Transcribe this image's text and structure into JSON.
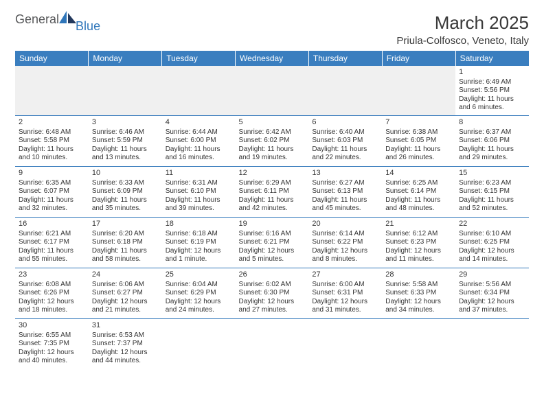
{
  "logo": {
    "general": "General",
    "blue": "Blue"
  },
  "header": {
    "month": "March 2025",
    "location": "Priula-Colfosco, Veneto, Italy"
  },
  "colors": {
    "header_bg": "#3a7ebf",
    "header_text": "#ffffff",
    "border": "#2f76ba",
    "logo_gray": "#58595b",
    "logo_blue": "#2f76ba",
    "blank_bg": "#f0f0f0",
    "text": "#333333"
  },
  "days_of_week": [
    "Sunday",
    "Monday",
    "Tuesday",
    "Wednesday",
    "Thursday",
    "Friday",
    "Saturday"
  ],
  "weeks": [
    [
      null,
      null,
      null,
      null,
      null,
      null,
      {
        "n": "1",
        "sr": "Sunrise: 6:49 AM",
        "ss": "Sunset: 5:56 PM",
        "dl": "Daylight: 11 hours and 6 minutes."
      }
    ],
    [
      {
        "n": "2",
        "sr": "Sunrise: 6:48 AM",
        "ss": "Sunset: 5:58 PM",
        "dl": "Daylight: 11 hours and 10 minutes."
      },
      {
        "n": "3",
        "sr": "Sunrise: 6:46 AM",
        "ss": "Sunset: 5:59 PM",
        "dl": "Daylight: 11 hours and 13 minutes."
      },
      {
        "n": "4",
        "sr": "Sunrise: 6:44 AM",
        "ss": "Sunset: 6:00 PM",
        "dl": "Daylight: 11 hours and 16 minutes."
      },
      {
        "n": "5",
        "sr": "Sunrise: 6:42 AM",
        "ss": "Sunset: 6:02 PM",
        "dl": "Daylight: 11 hours and 19 minutes."
      },
      {
        "n": "6",
        "sr": "Sunrise: 6:40 AM",
        "ss": "Sunset: 6:03 PM",
        "dl": "Daylight: 11 hours and 22 minutes."
      },
      {
        "n": "7",
        "sr": "Sunrise: 6:38 AM",
        "ss": "Sunset: 6:05 PM",
        "dl": "Daylight: 11 hours and 26 minutes."
      },
      {
        "n": "8",
        "sr": "Sunrise: 6:37 AM",
        "ss": "Sunset: 6:06 PM",
        "dl": "Daylight: 11 hours and 29 minutes."
      }
    ],
    [
      {
        "n": "9",
        "sr": "Sunrise: 6:35 AM",
        "ss": "Sunset: 6:07 PM",
        "dl": "Daylight: 11 hours and 32 minutes."
      },
      {
        "n": "10",
        "sr": "Sunrise: 6:33 AM",
        "ss": "Sunset: 6:09 PM",
        "dl": "Daylight: 11 hours and 35 minutes."
      },
      {
        "n": "11",
        "sr": "Sunrise: 6:31 AM",
        "ss": "Sunset: 6:10 PM",
        "dl": "Daylight: 11 hours and 39 minutes."
      },
      {
        "n": "12",
        "sr": "Sunrise: 6:29 AM",
        "ss": "Sunset: 6:11 PM",
        "dl": "Daylight: 11 hours and 42 minutes."
      },
      {
        "n": "13",
        "sr": "Sunrise: 6:27 AM",
        "ss": "Sunset: 6:13 PM",
        "dl": "Daylight: 11 hours and 45 minutes."
      },
      {
        "n": "14",
        "sr": "Sunrise: 6:25 AM",
        "ss": "Sunset: 6:14 PM",
        "dl": "Daylight: 11 hours and 48 minutes."
      },
      {
        "n": "15",
        "sr": "Sunrise: 6:23 AM",
        "ss": "Sunset: 6:15 PM",
        "dl": "Daylight: 11 hours and 52 minutes."
      }
    ],
    [
      {
        "n": "16",
        "sr": "Sunrise: 6:21 AM",
        "ss": "Sunset: 6:17 PM",
        "dl": "Daylight: 11 hours and 55 minutes."
      },
      {
        "n": "17",
        "sr": "Sunrise: 6:20 AM",
        "ss": "Sunset: 6:18 PM",
        "dl": "Daylight: 11 hours and 58 minutes."
      },
      {
        "n": "18",
        "sr": "Sunrise: 6:18 AM",
        "ss": "Sunset: 6:19 PM",
        "dl": "Daylight: 12 hours and 1 minute."
      },
      {
        "n": "19",
        "sr": "Sunrise: 6:16 AM",
        "ss": "Sunset: 6:21 PM",
        "dl": "Daylight: 12 hours and 5 minutes."
      },
      {
        "n": "20",
        "sr": "Sunrise: 6:14 AM",
        "ss": "Sunset: 6:22 PM",
        "dl": "Daylight: 12 hours and 8 minutes."
      },
      {
        "n": "21",
        "sr": "Sunrise: 6:12 AM",
        "ss": "Sunset: 6:23 PM",
        "dl": "Daylight: 12 hours and 11 minutes."
      },
      {
        "n": "22",
        "sr": "Sunrise: 6:10 AM",
        "ss": "Sunset: 6:25 PM",
        "dl": "Daylight: 12 hours and 14 minutes."
      }
    ],
    [
      {
        "n": "23",
        "sr": "Sunrise: 6:08 AM",
        "ss": "Sunset: 6:26 PM",
        "dl": "Daylight: 12 hours and 18 minutes."
      },
      {
        "n": "24",
        "sr": "Sunrise: 6:06 AM",
        "ss": "Sunset: 6:27 PM",
        "dl": "Daylight: 12 hours and 21 minutes."
      },
      {
        "n": "25",
        "sr": "Sunrise: 6:04 AM",
        "ss": "Sunset: 6:29 PM",
        "dl": "Daylight: 12 hours and 24 minutes."
      },
      {
        "n": "26",
        "sr": "Sunrise: 6:02 AM",
        "ss": "Sunset: 6:30 PM",
        "dl": "Daylight: 12 hours and 27 minutes."
      },
      {
        "n": "27",
        "sr": "Sunrise: 6:00 AM",
        "ss": "Sunset: 6:31 PM",
        "dl": "Daylight: 12 hours and 31 minutes."
      },
      {
        "n": "28",
        "sr": "Sunrise: 5:58 AM",
        "ss": "Sunset: 6:33 PM",
        "dl": "Daylight: 12 hours and 34 minutes."
      },
      {
        "n": "29",
        "sr": "Sunrise: 5:56 AM",
        "ss": "Sunset: 6:34 PM",
        "dl": "Daylight: 12 hours and 37 minutes."
      }
    ],
    [
      {
        "n": "30",
        "sr": "Sunrise: 6:55 AM",
        "ss": "Sunset: 7:35 PM",
        "dl": "Daylight: 12 hours and 40 minutes."
      },
      {
        "n": "31",
        "sr": "Sunrise: 6:53 AM",
        "ss": "Sunset: 7:37 PM",
        "dl": "Daylight: 12 hours and 44 minutes."
      },
      null,
      null,
      null,
      null,
      null
    ]
  ]
}
